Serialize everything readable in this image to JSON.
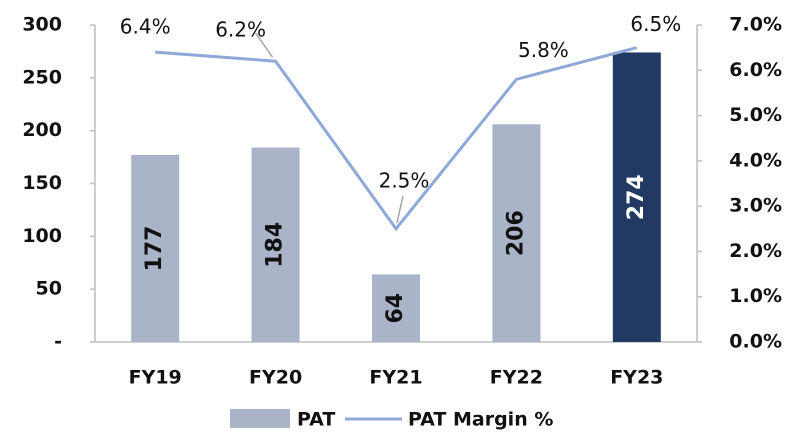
{
  "chart_data": {
    "type": "bar",
    "categories": [
      "FY19",
      "FY20",
      "FY21",
      "FY22",
      "FY23"
    ],
    "series": [
      {
        "name": "PAT",
        "type": "bar",
        "colors": [
          "#a9b4c8",
          "#a9b4c8",
          "#a9b4c8",
          "#a9b4c8",
          "#223a63"
        ],
        "values": [
          177,
          184,
          64,
          206,
          274
        ]
      },
      {
        "name": "PAT Margin %",
        "type": "line",
        "axis": "y2",
        "color": "#8fa8d8",
        "values": [
          6.4,
          6.2,
          2.5,
          5.8,
          6.5
        ],
        "value_labels": [
          "6.4%",
          "6.2%",
          "2.5%",
          "5.8%",
          "6.5%"
        ]
      }
    ],
    "ylim": [
      0,
      300
    ],
    "yticks": [
      {
        "value": 0,
        "label": "-"
      },
      50,
      100,
      150,
      200,
      250,
      300
    ],
    "y2lim": [
      0,
      7
    ],
    "y2ticks": [
      {
        "value": 0,
        "label": "0.0%"
      },
      {
        "value": 1,
        "label": "1.0%"
      },
      {
        "value": 2,
        "label": "2.0%"
      },
      {
        "value": 3,
        "label": "3.0%"
      },
      {
        "value": 4,
        "label": "4.0%"
      },
      {
        "value": 5,
        "label": "5.0%"
      },
      {
        "value": 6,
        "label": "6.0%"
      },
      {
        "value": 7,
        "label": "7.0%"
      }
    ],
    "legend": "bottom"
  }
}
